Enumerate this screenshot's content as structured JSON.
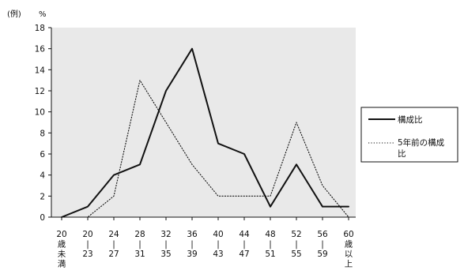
{
  "chart_data": {
    "type": "line",
    "title": "",
    "corner_label": "(例)",
    "ylabel": "%",
    "xlabel": "",
    "ylim": [
      0,
      18
    ],
    "yticks": [
      0,
      2,
      4,
      6,
      8,
      10,
      12,
      14,
      16,
      18
    ],
    "grid": false,
    "legend_position": "right",
    "categories": [
      [
        "20",
        "歳",
        "未",
        "満"
      ],
      [
        "20",
        "|",
        "23"
      ],
      [
        "24",
        "|",
        "27"
      ],
      [
        "28",
        "|",
        "31"
      ],
      [
        "32",
        "|",
        "35"
      ],
      [
        "36",
        "|",
        "39"
      ],
      [
        "40",
        "|",
        "43"
      ],
      [
        "44",
        "|",
        "47"
      ],
      [
        "48",
        "|",
        "51"
      ],
      [
        "52",
        "|",
        "55"
      ],
      [
        "56",
        "|",
        "59"
      ],
      [
        "60",
        "歳",
        "以",
        "上"
      ]
    ],
    "series": [
      {
        "name": "構成比",
        "style": "solid",
        "color": "#111111",
        "values": [
          0,
          1,
          4,
          5,
          12,
          16,
          7,
          6,
          1,
          5,
          1,
          1
        ]
      },
      {
        "name": "5年前の構成比",
        "name_lines": [
          "5年前の構成",
          "比"
        ],
        "style": "dotted",
        "color": "#111111",
        "values": [
          0,
          0,
          2,
          13,
          9,
          5,
          2,
          2,
          2,
          9,
          3,
          0
        ]
      }
    ],
    "colors": {
      "plot_background": "#e9e9e9",
      "axis": "#111111"
    }
  }
}
